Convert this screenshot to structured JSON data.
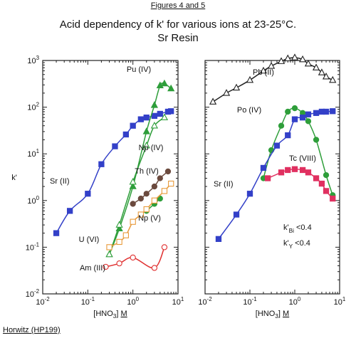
{
  "header": {
    "figure_ref": "Figures 4 and 5",
    "title": "Acid dependency of k' for various ions at 23-25°C.",
    "subtitle": "Sr Resin"
  },
  "footer": {
    "credit": "Horwitz (HP199)"
  },
  "chart_data": [
    {
      "type": "line",
      "panel": "left",
      "xscale": "log",
      "yscale": "log",
      "xlim": [
        0.01,
        10
      ],
      "ylim": [
        0.01,
        1000
      ],
      "xlabel": "[HNO3] M",
      "ylabel": "k'",
      "xticks": [
        "10-2",
        "10-1",
        "100",
        "101"
      ],
      "yticks": [
        "10-2",
        "10-1",
        "100",
        "101",
        "102",
        "103"
      ],
      "series": [
        {
          "name": "Sr (II)",
          "marker": "square-filled",
          "color": "#3340c8",
          "x": [
            0.02,
            0.04,
            0.1,
            0.2,
            0.4,
            0.7,
            1.0,
            1.5,
            2.0,
            3.0,
            4.0,
            6.0,
            7.0
          ],
          "y": [
            0.2,
            0.6,
            1.4,
            6.0,
            14.5,
            26,
            40,
            55,
            60,
            65,
            72,
            80,
            82
          ]
        },
        {
          "name": "Pu (IV)",
          "marker": "triangle-filled",
          "color": "#2e9e3a",
          "x": [
            0.3,
            0.5,
            1.0,
            2.0,
            3.0,
            4.0,
            5.0,
            7.0
          ],
          "y": [
            0.07,
            0.25,
            2.0,
            30,
            110,
            290,
            320,
            250
          ]
        },
        {
          "name": "Np (IV)",
          "marker": "triangle-open",
          "color": "#2e9e3a",
          "x": [
            0.3,
            0.5,
            1.0,
            2.0,
            3.0,
            5.0
          ],
          "y": [
            0.07,
            0.3,
            2.5,
            15,
            40,
            60
          ]
        },
        {
          "name": "Th (IV)",
          "marker": "circle-filled",
          "color": "#6b4a3e",
          "x": [
            1.0,
            1.5,
            2.0,
            3.0,
            4.0,
            6.0
          ],
          "y": [
            0.85,
            1.1,
            1.4,
            2.0,
            3.0,
            4.2
          ]
        },
        {
          "name": "Np (V)",
          "marker": "circle-filled",
          "color": "#2e9e3a",
          "x": [
            2.0,
            3.0,
            4.0
          ],
          "y": [
            0.6,
            0.85,
            1.1
          ]
        },
        {
          "name": "U (VI)",
          "marker": "square-open",
          "color": "#e89a3a",
          "x": [
            0.3,
            0.5,
            0.7,
            1.0,
            1.5,
            2.0,
            3.0,
            5.0,
            7.0
          ],
          "y": [
            0.1,
            0.13,
            0.18,
            0.35,
            0.5,
            0.65,
            1.0,
            1.6,
            2.3
          ]
        },
        {
          "name": "Am (III)",
          "marker": "circle-open",
          "color": "#e03030",
          "x": [
            0.25,
            0.5,
            1.0,
            3.0,
            5.0
          ],
          "y": [
            0.038,
            0.045,
            0.06,
            0.036,
            0.1
          ]
        }
      ],
      "annotations": [
        "Sr (II)",
        "Pu (IV)",
        "Np (IV)",
        "Th (IV)",
        "Np (V)",
        "U (VI)",
        "Am (III)"
      ]
    },
    {
      "type": "line",
      "panel": "right",
      "xscale": "log",
      "yscale": "log",
      "xlim": [
        0.01,
        10
      ],
      "ylim": [
        0.01,
        1000
      ],
      "xlabel": "[HNO3] M",
      "xticks": [
        "10-2",
        "10-1",
        "100",
        "101"
      ],
      "series": [
        {
          "name": "Pb (II)",
          "marker": "triangle-open",
          "color": "#222222",
          "x": [
            0.015,
            0.03,
            0.05,
            0.1,
            0.2,
            0.3,
            0.5,
            0.7,
            1.0,
            1.5,
            2.0,
            3.0,
            4.0,
            5.0,
            7.0
          ],
          "y": [
            130,
            200,
            260,
            380,
            600,
            760,
            960,
            1100,
            1150,
            1050,
            850,
            700,
            550,
            450,
            380
          ]
        },
        {
          "name": "Po (IV)",
          "marker": "circle-filled",
          "color": "#2e9e3a",
          "x": [
            0.2,
            0.3,
            0.5,
            0.7,
            1.0,
            1.5,
            2.0,
            3.0,
            5.0,
            7.0
          ],
          "y": [
            3.0,
            12,
            40,
            80,
            95,
            75,
            50,
            20,
            3.5,
            1.3
          ]
        },
        {
          "name": "Sr (II)",
          "marker": "square-filled",
          "color": "#3340c8",
          "x": [
            0.02,
            0.05,
            0.1,
            0.2,
            0.4,
            0.7,
            1.0,
            1.5,
            2.0,
            3.0,
            4.0,
            5.0,
            7.0
          ],
          "y": [
            0.15,
            0.5,
            1.4,
            5.0,
            15,
            25,
            55,
            60,
            70,
            75,
            80,
            80,
            82
          ]
        },
        {
          "name": "Tc (VIII)",
          "marker": "square-filled",
          "color": "#e03060",
          "x": [
            0.25,
            0.5,
            0.7,
            1.0,
            1.5,
            2.0,
            3.0,
            4.0,
            5.0,
            7.0
          ],
          "y": [
            3.0,
            4.0,
            4.5,
            4.7,
            4.5,
            4.0,
            3.0,
            2.3,
            1.6,
            1.1
          ]
        }
      ],
      "annotations": [
        "Pb (II)",
        "Po (IV)",
        "Tc (VIII)",
        "Sr (II)",
        "k'Bi <0.4",
        "k'Y <0.4"
      ]
    }
  ]
}
